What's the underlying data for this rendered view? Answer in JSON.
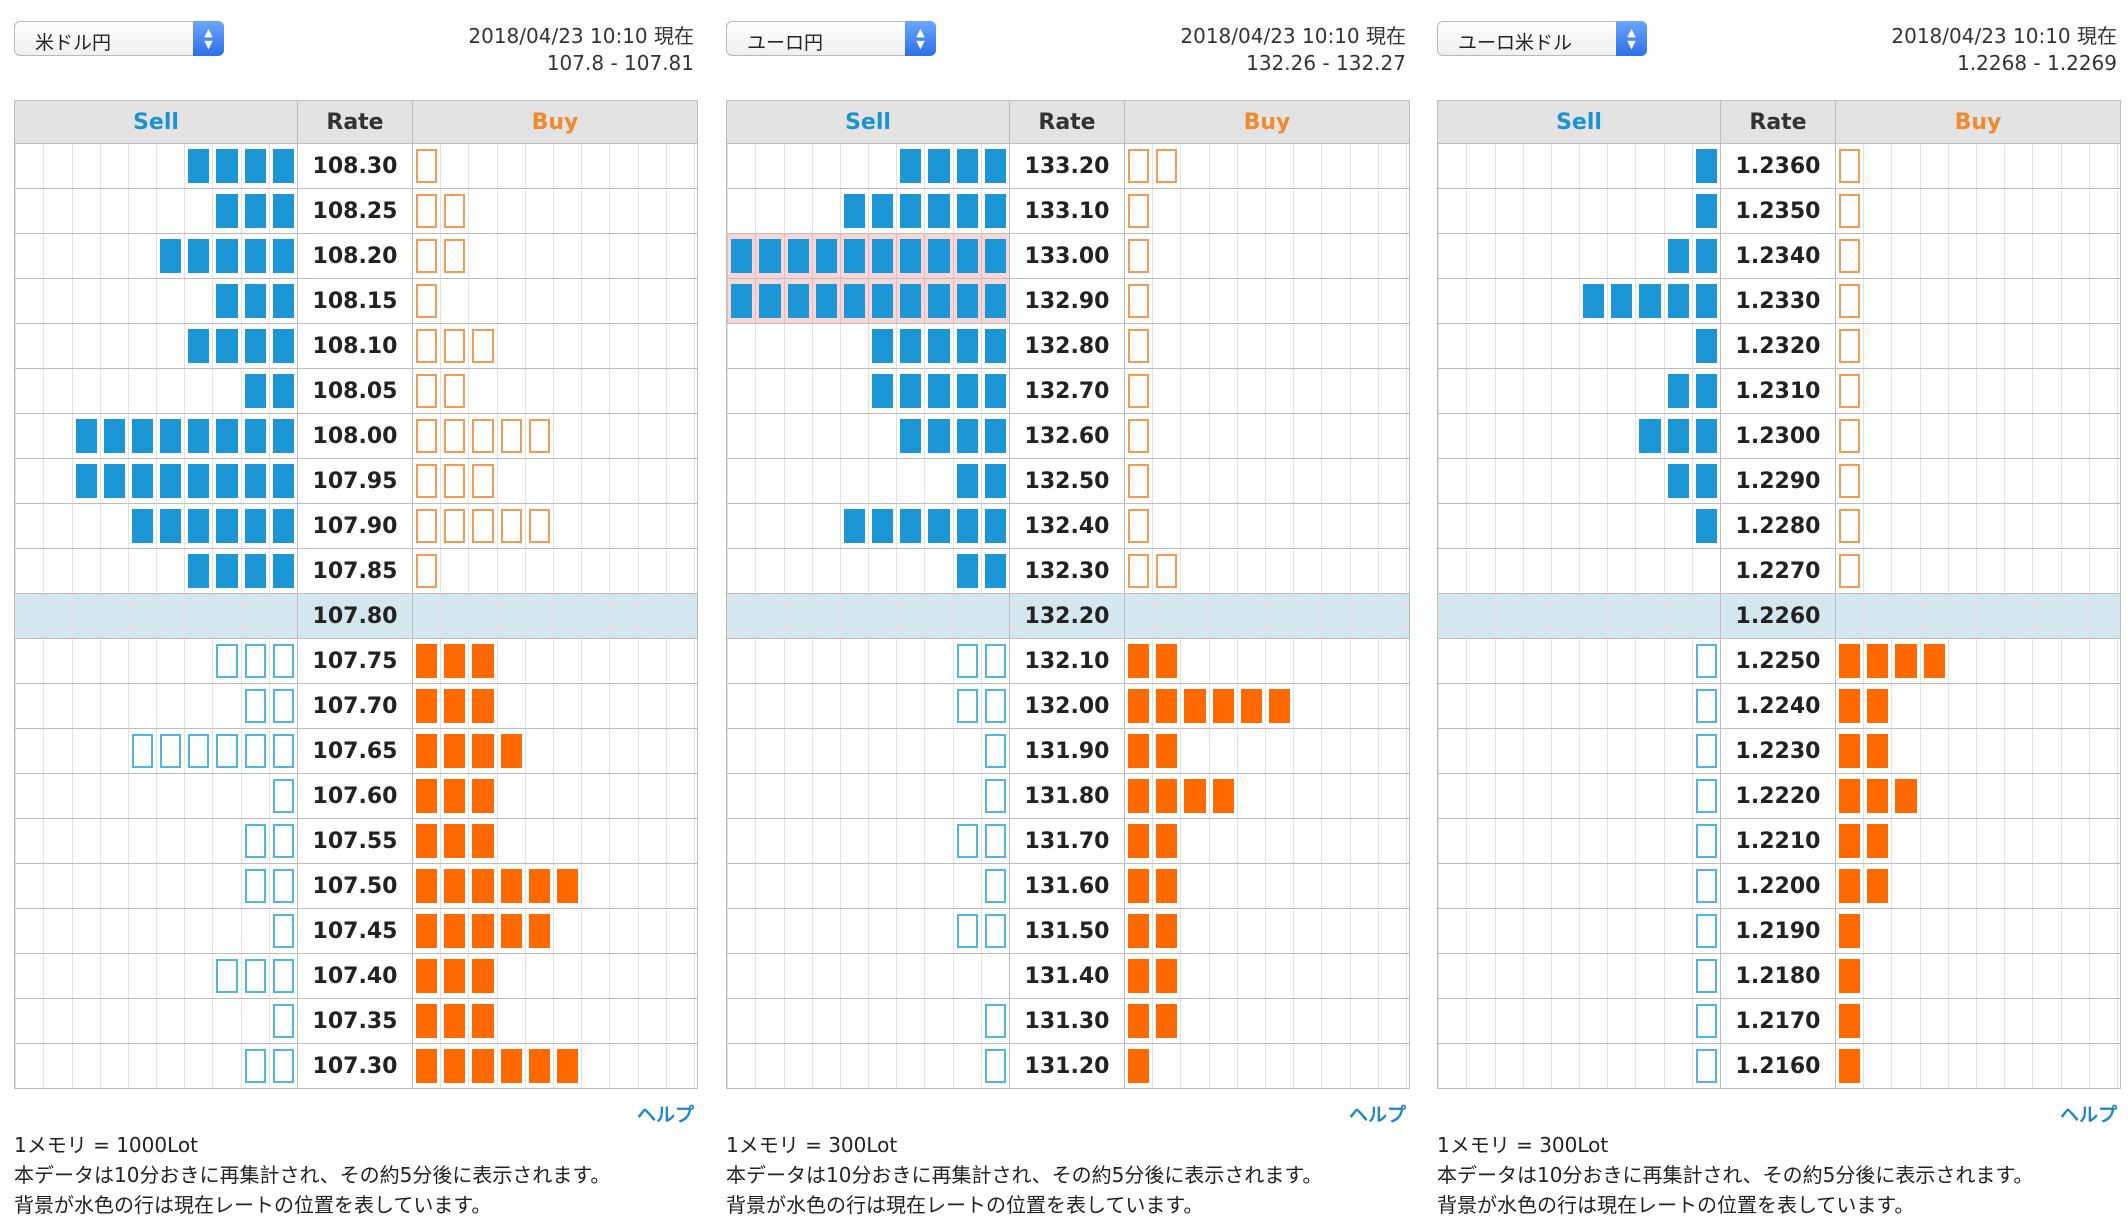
{
  "columns": {
    "sell": "Sell",
    "rate": "Rate",
    "buy": "Buy"
  },
  "help_label": "ヘルプ",
  "colors": {
    "sell": "#1c96d4",
    "buy": "#ff6a00",
    "current_row": "#d4e7ee",
    "highlight": "#fbe3e3"
  },
  "panels": [
    {
      "pair": "米ドル円",
      "timestamp": "2018/04/23 10:10 現在",
      "quote": "107.8 - 107.81",
      "notes": [
        "1メモリ = 1000Lot",
        "本データは10分おきに再集計され、その約5分後に表示されます。",
        "背景が水色の行は現在レートの位置を表しています。"
      ],
      "rows": [
        {
          "rate": "108.30",
          "sell": 4,
          "buy": 1,
          "sell_open": false,
          "buy_open": true
        },
        {
          "rate": "108.25",
          "sell": 3,
          "buy": 2,
          "sell_open": false,
          "buy_open": true
        },
        {
          "rate": "108.20",
          "sell": 5,
          "buy": 2,
          "sell_open": false,
          "buy_open": true
        },
        {
          "rate": "108.15",
          "sell": 3,
          "buy": 1,
          "sell_open": false,
          "buy_open": true
        },
        {
          "rate": "108.10",
          "sell": 4,
          "buy": 3,
          "sell_open": false,
          "buy_open": true
        },
        {
          "rate": "108.05",
          "sell": 2,
          "buy": 2,
          "sell_open": false,
          "buy_open": true
        },
        {
          "rate": "108.00",
          "sell": 8,
          "buy": 5,
          "sell_open": false,
          "buy_open": true
        },
        {
          "rate": "107.95",
          "sell": 8,
          "buy": 3,
          "sell_open": false,
          "buy_open": true
        },
        {
          "rate": "107.90",
          "sell": 6,
          "buy": 5,
          "sell_open": false,
          "buy_open": true
        },
        {
          "rate": "107.85",
          "sell": 4,
          "buy": 1,
          "sell_open": false,
          "buy_open": true
        },
        {
          "rate": "107.80",
          "sell": 0,
          "buy": 0,
          "current": true
        },
        {
          "rate": "107.75",
          "sell": 3,
          "buy": 3,
          "sell_open": true,
          "buy_open": false
        },
        {
          "rate": "107.70",
          "sell": 2,
          "buy": 3,
          "sell_open": true,
          "buy_open": false
        },
        {
          "rate": "107.65",
          "sell": 6,
          "buy": 4,
          "sell_open": true,
          "buy_open": false
        },
        {
          "rate": "107.60",
          "sell": 1,
          "buy": 3,
          "sell_open": true,
          "buy_open": false
        },
        {
          "rate": "107.55",
          "sell": 2,
          "buy": 3,
          "sell_open": true,
          "buy_open": false
        },
        {
          "rate": "107.50",
          "sell": 2,
          "buy": 6,
          "sell_open": true,
          "buy_open": false
        },
        {
          "rate": "107.45",
          "sell": 1,
          "buy": 5,
          "sell_open": true,
          "buy_open": false
        },
        {
          "rate": "107.40",
          "sell": 3,
          "buy": 3,
          "sell_open": true,
          "buy_open": false
        },
        {
          "rate": "107.35",
          "sell": 1,
          "buy": 3,
          "sell_open": true,
          "buy_open": false
        },
        {
          "rate": "107.30",
          "sell": 2,
          "buy": 6,
          "sell_open": true,
          "buy_open": false
        }
      ]
    },
    {
      "pair": "ユーロ円",
      "timestamp": "2018/04/23 10:10 現在",
      "quote": "132.26 - 132.27",
      "notes": [
        "1メモリ = 300Lot",
        "本データは10分おきに再集計され、その約5分後に表示されます。",
        "背景が水色の行は現在レートの位置を表しています。"
      ],
      "rows": [
        {
          "rate": "133.20",
          "sell": 4,
          "buy": 2,
          "sell_open": false,
          "buy_open": true
        },
        {
          "rate": "133.10",
          "sell": 6,
          "buy": 1,
          "sell_open": false,
          "buy_open": true
        },
        {
          "rate": "133.00",
          "sell": 10,
          "buy": 1,
          "sell_open": false,
          "buy_open": true,
          "highlight": true
        },
        {
          "rate": "132.90",
          "sell": 10,
          "buy": 1,
          "sell_open": false,
          "buy_open": true,
          "highlight": true
        },
        {
          "rate": "132.80",
          "sell": 5,
          "buy": 1,
          "sell_open": false,
          "buy_open": true
        },
        {
          "rate": "132.70",
          "sell": 5,
          "buy": 1,
          "sell_open": false,
          "buy_open": true
        },
        {
          "rate": "132.60",
          "sell": 4,
          "buy": 1,
          "sell_open": false,
          "buy_open": true
        },
        {
          "rate": "132.50",
          "sell": 2,
          "buy": 1,
          "sell_open": false,
          "buy_open": true
        },
        {
          "rate": "132.40",
          "sell": 6,
          "buy": 1,
          "sell_open": false,
          "buy_open": true
        },
        {
          "rate": "132.30",
          "sell": 2,
          "buy": 2,
          "sell_open": false,
          "buy_open": true
        },
        {
          "rate": "132.20",
          "sell": 0,
          "buy": 0,
          "current": true
        },
        {
          "rate": "132.10",
          "sell": 2,
          "buy": 2,
          "sell_open": true,
          "buy_open": false
        },
        {
          "rate": "132.00",
          "sell": 2,
          "buy": 6,
          "sell_open": true,
          "buy_open": false
        },
        {
          "rate": "131.90",
          "sell": 1,
          "buy": 2,
          "sell_open": true,
          "buy_open": false
        },
        {
          "rate": "131.80",
          "sell": 1,
          "buy": 4,
          "sell_open": true,
          "buy_open": false
        },
        {
          "rate": "131.70",
          "sell": 2,
          "buy": 2,
          "sell_open": true,
          "buy_open": false
        },
        {
          "rate": "131.60",
          "sell": 1,
          "buy": 2,
          "sell_open": true,
          "buy_open": false
        },
        {
          "rate": "131.50",
          "sell": 2,
          "buy": 2,
          "sell_open": true,
          "buy_open": false
        },
        {
          "rate": "131.40",
          "sell": 0,
          "buy": 2,
          "sell_open": true,
          "buy_open": false
        },
        {
          "rate": "131.30",
          "sell": 1,
          "buy": 2,
          "sell_open": true,
          "buy_open": false
        },
        {
          "rate": "131.20",
          "sell": 1,
          "buy": 1,
          "sell_open": true,
          "buy_open": false
        }
      ]
    },
    {
      "pair": "ユーロ米ドル",
      "timestamp": "2018/04/23 10:10 現在",
      "quote": "1.2268 - 1.2269",
      "notes": [
        "1メモリ = 300Lot",
        "本データは10分おきに再集計され、その約5分後に表示されます。",
        "背景が水色の行は現在レートの位置を表しています。"
      ],
      "rows": [
        {
          "rate": "1.2360",
          "sell": 1,
          "buy": 1,
          "sell_open": false,
          "buy_open": true
        },
        {
          "rate": "1.2350",
          "sell": 1,
          "buy": 1,
          "sell_open": false,
          "buy_open": true
        },
        {
          "rate": "1.2340",
          "sell": 2,
          "buy": 1,
          "sell_open": false,
          "buy_open": true
        },
        {
          "rate": "1.2330",
          "sell": 5,
          "buy": 1,
          "sell_open": false,
          "buy_open": true
        },
        {
          "rate": "1.2320",
          "sell": 1,
          "buy": 1,
          "sell_open": false,
          "buy_open": true
        },
        {
          "rate": "1.2310",
          "sell": 2,
          "buy": 1,
          "sell_open": false,
          "buy_open": true
        },
        {
          "rate": "1.2300",
          "sell": 3,
          "buy": 1,
          "sell_open": false,
          "buy_open": true
        },
        {
          "rate": "1.2290",
          "sell": 2,
          "buy": 1,
          "sell_open": false,
          "buy_open": true
        },
        {
          "rate": "1.2280",
          "sell": 1,
          "buy": 1,
          "sell_open": false,
          "buy_open": true
        },
        {
          "rate": "1.2270",
          "sell": 0,
          "buy": 1,
          "sell_open": false,
          "buy_open": true
        },
        {
          "rate": "1.2260",
          "sell": 0,
          "buy": 0,
          "current": true
        },
        {
          "rate": "1.2250",
          "sell": 1,
          "buy": 4,
          "sell_open": true,
          "buy_open": false
        },
        {
          "rate": "1.2240",
          "sell": 1,
          "buy": 2,
          "sell_open": true,
          "buy_open": false
        },
        {
          "rate": "1.2230",
          "sell": 1,
          "buy": 2,
          "sell_open": true,
          "buy_open": false
        },
        {
          "rate": "1.2220",
          "sell": 1,
          "buy": 3,
          "sell_open": true,
          "buy_open": false
        },
        {
          "rate": "1.2210",
          "sell": 1,
          "buy": 2,
          "sell_open": true,
          "buy_open": false
        },
        {
          "rate": "1.2200",
          "sell": 1,
          "buy": 2,
          "sell_open": true,
          "buy_open": false
        },
        {
          "rate": "1.2190",
          "sell": 1,
          "buy": 1,
          "sell_open": true,
          "buy_open": false
        },
        {
          "rate": "1.2180",
          "sell": 1,
          "buy": 1,
          "sell_open": true,
          "buy_open": false
        },
        {
          "rate": "1.2170",
          "sell": 1,
          "buy": 1,
          "sell_open": true,
          "buy_open": false
        },
        {
          "rate": "1.2160",
          "sell": 1,
          "buy": 1,
          "sell_open": true,
          "buy_open": false
        }
      ]
    }
  ]
}
